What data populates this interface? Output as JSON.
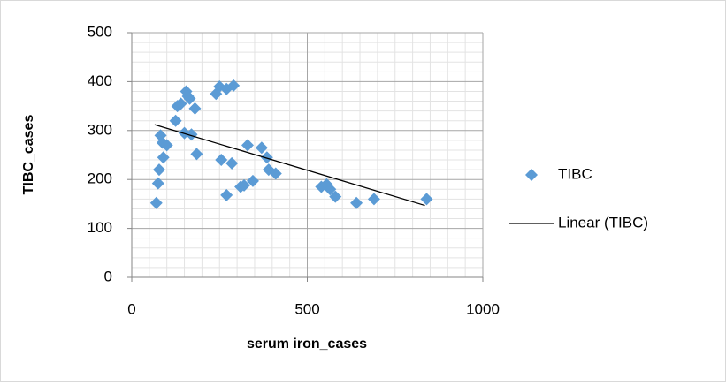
{
  "chart_data": {
    "type": "scatter",
    "xlabel": "serum iron_cases",
    "ylabel": "TIBC_cases",
    "xlim": [
      0,
      1000
    ],
    "xticks": [
      0,
      500,
      1000
    ],
    "ylim": [
      0,
      500
    ],
    "yticks": [
      0,
      100,
      200,
      300,
      400,
      500
    ],
    "grid": true,
    "legend": "right",
    "series": [
      {
        "name": "TIBC",
        "color": "#5b9bd5",
        "x": [
          70,
          75,
          78,
          82,
          88,
          90,
          100,
          125,
          130,
          140,
          155,
          160,
          165,
          150,
          170,
          180,
          185,
          240,
          250,
          270,
          290,
          255,
          270,
          285,
          310,
          320,
          330,
          345,
          370,
          385,
          390,
          410,
          540,
          555,
          565,
          580,
          640,
          690,
          840
        ],
        "values": [
          152,
          192,
          220,
          290,
          275,
          245,
          270,
          320,
          350,
          355,
          380,
          370,
          365,
          295,
          292,
          345,
          252,
          375,
          390,
          385,
          392,
          240,
          168,
          233,
          185,
          188,
          270,
          197,
          265,
          245,
          220,
          212,
          185,
          190,
          180,
          165,
          152,
          160,
          160
        ]
      },
      {
        "name": "Linear (TIBC)",
        "color": "#000000",
        "type": "line",
        "x": [
          65,
          835
        ],
        "values": [
          312,
          147
        ]
      }
    ]
  }
}
